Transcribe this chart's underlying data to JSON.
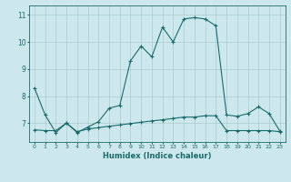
{
  "title": "",
  "xlabel": "Humidex (Indice chaleur)",
  "bg_color": "#cce8ec",
  "grid_color": "#aacccc",
  "line_color": "#1a6b6b",
  "xlim": [
    -0.5,
    23.5
  ],
  "ylim": [
    6.3,
    11.35
  ],
  "yticks": [
    7,
    8,
    9,
    10,
    11
  ],
  "xticks": [
    0,
    1,
    2,
    3,
    4,
    5,
    6,
    7,
    8,
    9,
    10,
    11,
    12,
    13,
    14,
    15,
    16,
    17,
    18,
    19,
    20,
    21,
    22,
    23
  ],
  "line1_x": [
    0,
    1,
    2,
    3,
    4,
    5,
    6,
    7,
    8,
    9,
    10,
    11,
    12,
    13,
    14,
    15,
    16,
    17,
    18,
    19,
    20,
    21,
    22,
    23
  ],
  "line1_y": [
    8.3,
    7.3,
    6.65,
    7.0,
    6.65,
    6.85,
    7.05,
    7.55,
    7.65,
    9.3,
    9.85,
    9.45,
    10.55,
    10.0,
    10.85,
    10.9,
    10.85,
    10.6,
    7.3,
    7.25,
    7.35,
    7.6,
    7.35,
    6.7
  ],
  "line2_x": [
    0,
    1,
    2,
    3,
    4,
    5,
    6,
    7,
    8,
    9,
    10,
    11,
    12,
    13,
    14,
    15,
    16,
    17,
    18,
    19,
    20,
    21,
    22,
    23
  ],
  "line2_y": [
    6.75,
    6.72,
    6.72,
    7.0,
    6.68,
    6.78,
    6.83,
    6.88,
    6.93,
    6.98,
    7.03,
    7.08,
    7.12,
    7.17,
    7.22,
    7.22,
    7.27,
    7.27,
    6.72,
    6.72,
    6.72,
    6.72,
    6.72,
    6.68
  ]
}
